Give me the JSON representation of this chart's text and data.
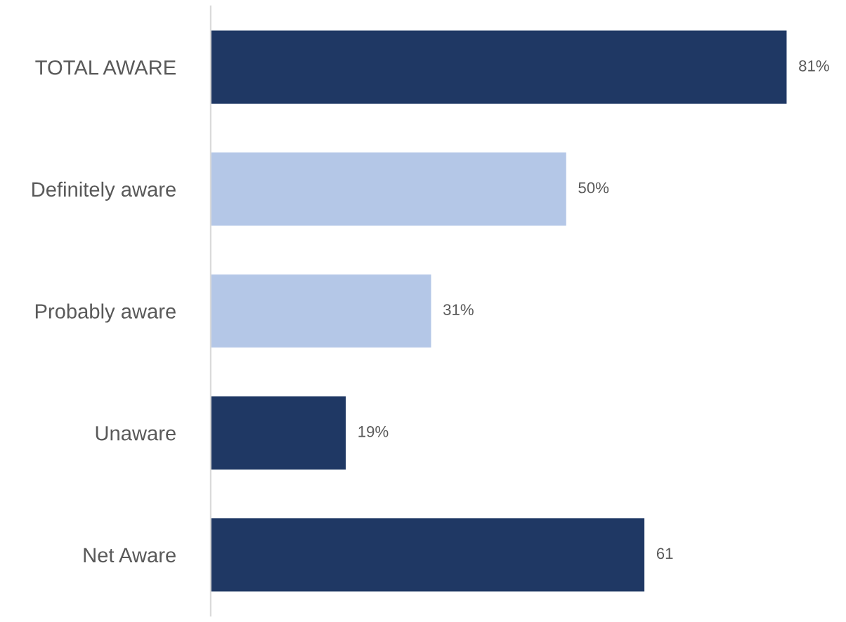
{
  "chart_data": {
    "type": "bar",
    "orientation": "horizontal",
    "categories": [
      "TOTAL AWARE",
      "Definitely aware",
      "Probably aware",
      "Unaware",
      "Net Aware"
    ],
    "values": [
      81,
      50,
      31,
      19,
      61
    ],
    "colors": [
      "#1f3864",
      "#b4c7e7",
      "#b4c7e7",
      "#1f3864",
      "#1f3864"
    ],
    "value_labels": [
      "81%",
      "50%",
      "31%",
      "19%",
      "61"
    ],
    "tick_labels": "y",
    "grid": false
  }
}
